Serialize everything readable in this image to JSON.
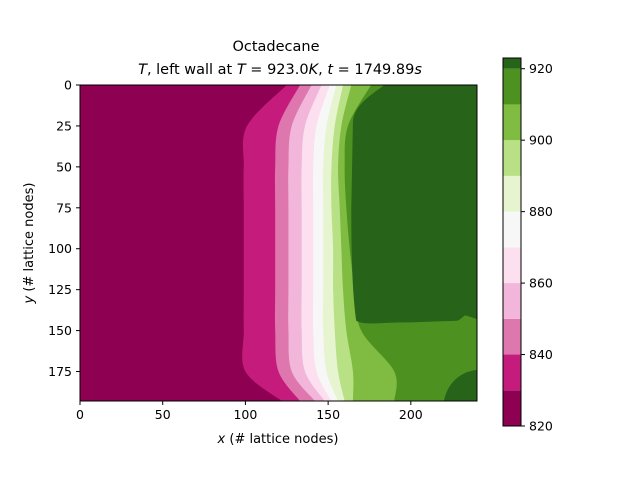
{
  "chart_data": {
    "type": "heatmap",
    "title_line1": "Octadecane",
    "title_line2": {
      "var": "T",
      "mid": ", left wall at ",
      "var2": "T",
      "eq1": " = 923.0",
      "unit1": "K",
      "sep": ", ",
      "var3": "t",
      "eq2": " = 1749.89",
      "unit2": "s"
    },
    "xlabel": {
      "var": "x",
      "text": " (# lattice nodes)"
    },
    "ylabel": {
      "var": "y",
      "text": " (# lattice nodes)"
    },
    "xlim": [
      0,
      240
    ],
    "ylim": [
      193,
      0
    ],
    "x_ticks": [
      0,
      50,
      100,
      150,
      200
    ],
    "y_ticks": [
      0,
      25,
      50,
      75,
      100,
      125,
      150,
      175
    ],
    "colorbar": {
      "levels": [
        820,
        830,
        840,
        850,
        860,
        870,
        880,
        890,
        900,
        910,
        920,
        923
      ],
      "colors": [
        "#8e0152",
        "#c51b7d",
        "#de77ae",
        "#f1b6da",
        "#fde0ef",
        "#f7f7f7",
        "#e6f5d0",
        "#b8e186",
        "#7fbc41",
        "#4d9221",
        "#276419"
      ],
      "ticks": [
        820,
        840,
        860,
        880,
        900,
        920
      ]
    },
    "field": {
      "description_source": "temperature contours, isotherm x-positions at y = 0, 25, 50, 75, 100, 125, 150, 175, 193",
      "y": [
        0,
        25,
        50,
        75,
        100,
        125,
        150,
        175,
        193
      ],
      "isotherms": [
        {
          "T": 830,
          "x": [
            125,
            101,
            99,
            99,
            99,
            99,
            99,
            100,
            122
          ]
        },
        {
          "T": 840,
          "x": [
            133,
            120,
            118,
            118,
            118,
            118,
            118,
            120,
            133
          ]
        },
        {
          "T": 850,
          "x": [
            140,
            128,
            126,
            126,
            126,
            126,
            126,
            128,
            142
          ]
        },
        {
          "T": 860,
          "x": [
            146,
            136,
            134,
            134,
            134,
            134,
            134,
            136,
            148
          ]
        },
        {
          "T": 870,
          "x": [
            151,
            143,
            141,
            141,
            141,
            141,
            141,
            143,
            152
          ]
        },
        {
          "T": 880,
          "x": [
            155,
            149,
            147,
            147,
            147,
            147,
            147,
            149,
            156
          ]
        },
        {
          "T": 890,
          "x": [
            159,
            154,
            152,
            152,
            153,
            153,
            154,
            156,
            160
          ]
        },
        {
          "T": 900,
          "x": [
            164,
            158,
            156,
            157,
            158,
            159,
            161,
            165,
            165
          ]
        },
        {
          "T": 910,
          "x": [
            176,
            162,
            160,
            161,
            163,
            166,
            170,
            190,
            190
          ]
        }
      ],
      "hot_region_920": {
        "x_from": [
          185,
          165,
          163,
          163,
          163,
          163,
          175,
          null,
          null
        ],
        "note": "dark green core; lower region near y>145 is 910-920 band"
      }
    }
  }
}
